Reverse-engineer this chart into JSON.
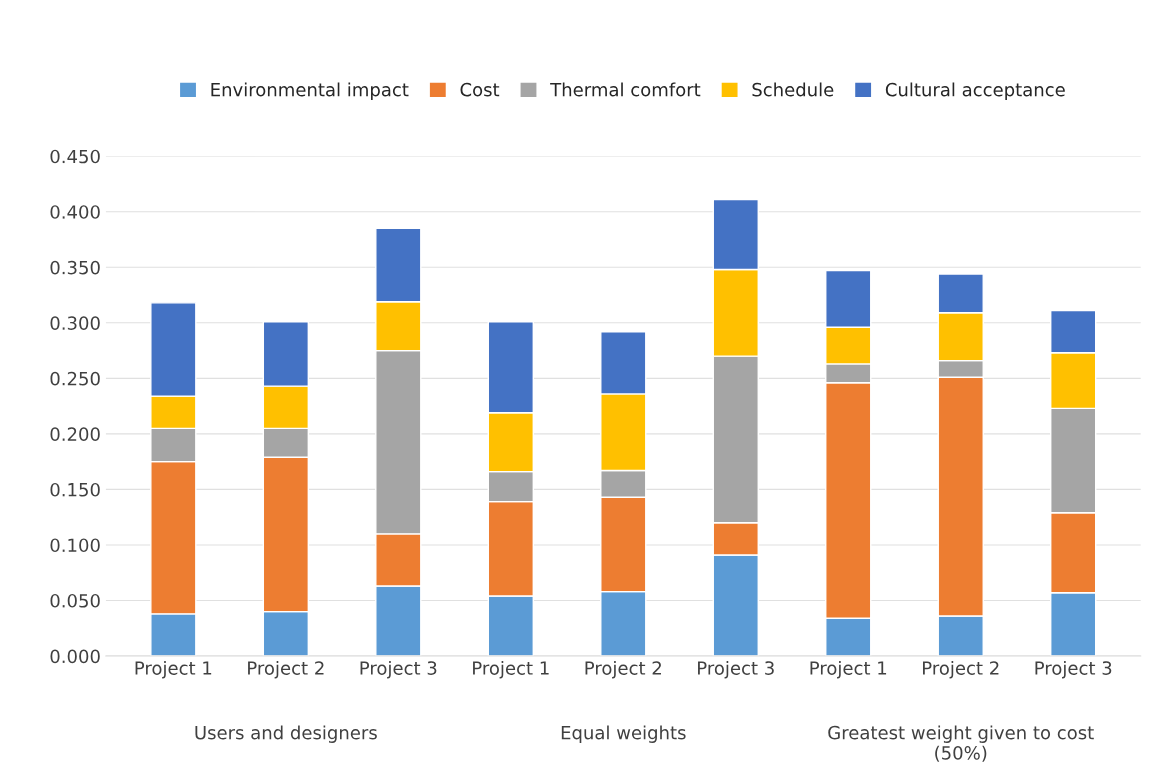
{
  "chart_data": {
    "type": "bar",
    "stacked": true,
    "categories": [
      "Project 1",
      "Project 2",
      "Project 3",
      "Project 1",
      "Project 2",
      "Project 3",
      "Project 1",
      "Project 2",
      "Project 3"
    ],
    "series": [
      {
        "name": "Environmental impact",
        "color": "#5b9bd5",
        "values": [
          0.038,
          0.04,
          0.063,
          0.054,
          0.058,
          0.091,
          0.034,
          0.036,
          0.057
        ]
      },
      {
        "name": "Cost",
        "color": "#ed7d31",
        "values": [
          0.137,
          0.139,
          0.047,
          0.085,
          0.085,
          0.029,
          0.212,
          0.215,
          0.072
        ]
      },
      {
        "name": "Thermal comfort",
        "color": "#a5a5a5",
        "values": [
          0.03,
          0.026,
          0.165,
          0.027,
          0.024,
          0.15,
          0.017,
          0.015,
          0.094
        ]
      },
      {
        "name": "Schedule",
        "color": "#ffc000",
        "values": [
          0.029,
          0.038,
          0.044,
          0.053,
          0.069,
          0.078,
          0.033,
          0.043,
          0.05
        ]
      },
      {
        "name": "Cultural acceptance",
        "color": "#4472c4",
        "values": [
          0.084,
          0.058,
          0.066,
          0.082,
          0.056,
          0.063,
          0.051,
          0.035,
          0.038
        ]
      }
    ],
    "annotations": [
      "Users and designers",
      "Equal weights",
      "Greatest weight given to cost\n(50%)"
    ],
    "ylim": [
      0,
      0.45
    ],
    "yticks": [
      {
        "value": 0,
        "label": "0.000"
      },
      {
        "value": 0.05,
        "label": "0.050"
      },
      {
        "value": 0.1,
        "label": "0.100"
      },
      {
        "value": 0.15,
        "label": "0.150"
      },
      {
        "value": 0.2,
        "label": "0.200"
      },
      {
        "value": 0.25,
        "label": "0.250"
      },
      {
        "value": 0.3,
        "label": "0.300"
      },
      {
        "value": 0.35,
        "label": "0.350"
      },
      {
        "value": 0.4,
        "label": "0.400"
      },
      {
        "value": 0.45,
        "label": "0.450"
      }
    ],
    "grid": "y",
    "legend": "top"
  }
}
